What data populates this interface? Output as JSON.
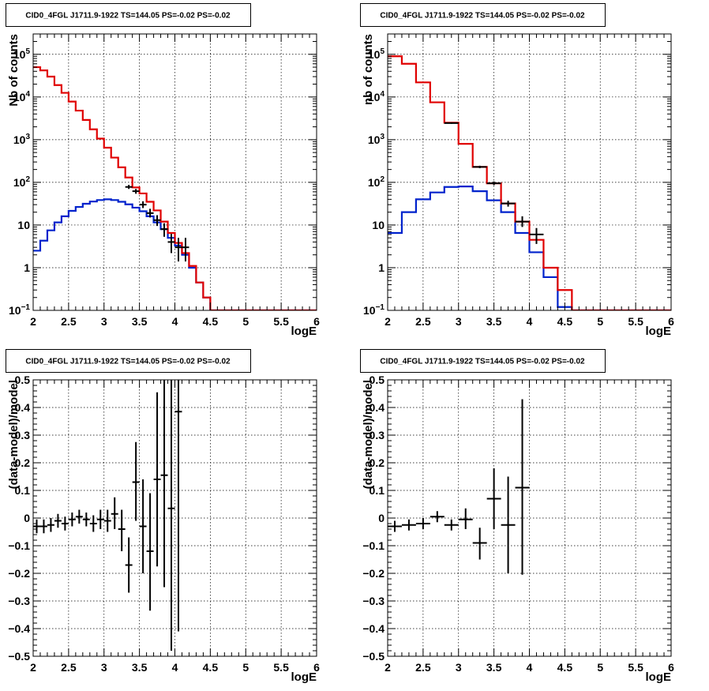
{
  "colors": {
    "data": "#000000",
    "total_model": "#e00000",
    "source_model": "#0022cc",
    "background": "#ffffff"
  },
  "panels": [
    {
      "id": "top-left",
      "title": "CID0_4FGL J1711.9-1922 TS=144.05 PS=-0.02 PS=-0.02",
      "chart_data": {
        "type": "histogram",
        "xlabel": "logE",
        "ylabel": "Nb of counts",
        "xlim": [
          2,
          6
        ],
        "ylim": [
          0.1,
          300000
        ],
        "yscale": "log",
        "grid": true,
        "x_ticks": [
          "2",
          "2.5",
          "3",
          "3.5",
          "4",
          "4.5",
          "5",
          "5.5",
          "6"
        ],
        "y_ticks": [
          {
            "value": 0.1,
            "base": "10",
            "exp": "−1"
          },
          {
            "value": 1,
            "label": "1"
          },
          {
            "value": 10,
            "label": "10"
          },
          {
            "value": 100,
            "base": "10",
            "exp": "2"
          },
          {
            "value": 1000,
            "base": "10",
            "exp": "3"
          },
          {
            "value": 10000,
            "base": "10",
            "exp": "4"
          },
          {
            "value": 100000,
            "base": "10",
            "exp": "5"
          }
        ],
        "bin_edges": [
          2.0,
          2.1,
          2.2,
          2.3,
          2.4,
          2.5,
          2.6,
          2.7,
          2.8,
          2.9,
          3.0,
          3.1,
          3.2,
          3.3,
          3.4,
          3.5,
          3.6,
          3.7,
          3.8,
          3.9,
          4.0,
          4.1,
          4.2,
          4.3,
          4.4,
          4.5,
          4.6,
          4.7,
          4.8,
          4.9,
          5.0,
          5.1,
          5.2,
          5.3,
          5.4,
          5.5,
          5.6,
          5.7,
          5.8,
          5.9,
          6.0
        ],
        "series": [
          {
            "role": "total_model",
            "values": [
              50000,
              42000,
              30000,
              19000,
              12500,
              7800,
              4800,
              2900,
              1750,
              1060,
              650,
              380,
              225,
              130,
              76,
              55,
              35,
              22,
              12,
              6.5,
              3.8,
              2.2,
              1.1,
              0.45,
              0.2,
              0.1,
              0.1,
              0.1,
              0.1,
              0.1,
              0.1,
              0.1,
              0.1,
              0.1,
              0.1,
              0.1,
              0.1,
              0.1,
              0.1,
              0.1
            ]
          },
          {
            "role": "source_model",
            "values": [
              2.5,
              4.3,
              7.5,
              11.5,
              16,
              21.5,
              26.5,
              31.5,
              35.5,
              38.5,
              40,
              38.5,
              35,
              30.5,
              25.5,
              21,
              16,
              11.5,
              8,
              5,
              3.3,
              2.0,
              1.0,
              0.45,
              0.2,
              0.1,
              0.1,
              0.1,
              0.1,
              0.1,
              0.1,
              0.1,
              0.1,
              0.1,
              0.1,
              0.1,
              0.1,
              0.1,
              0.1,
              0.1
            ]
          },
          {
            "role": "data",
            "points": [
              {
                "x": 3.35,
                "y": 78,
                "xerr": 0.05,
                "ylo": 70,
                "yhi": 87
              },
              {
                "x": 3.45,
                "y": 62,
                "xerr": 0.05,
                "ylo": 54,
                "yhi": 70
              },
              {
                "x": 3.55,
                "y": 30,
                "xerr": 0.05,
                "ylo": 25,
                "yhi": 36
              },
              {
                "x": 3.65,
                "y": 19,
                "xerr": 0.05,
                "ylo": 15,
                "yhi": 24
              },
              {
                "x": 3.75,
                "y": 13,
                "xerr": 0.05,
                "ylo": 9.5,
                "yhi": 17
              },
              {
                "x": 3.85,
                "y": 8,
                "xerr": 0.05,
                "ylo": 5.3,
                "yhi": 11
              },
              {
                "x": 3.95,
                "y": 4,
                "xerr": 0.05,
                "ylo": 2.2,
                "yhi": 6.2
              },
              {
                "x": 4.05,
                "y": 3,
                "xerr": 0.05,
                "ylo": 1.4,
                "yhi": 5
              },
              {
                "x": 4.15,
                "y": 3,
                "xerr": 0.05,
                "ylo": 1.4,
                "yhi": 5
              }
            ]
          }
        ]
      }
    },
    {
      "id": "top-right",
      "title": "CID0_4FGL J1711.9-1922 TS=144.05 PS=-0.02 PS=-0.02",
      "chart_data": {
        "type": "histogram",
        "xlabel": "logE",
        "ylabel": "nb of counts",
        "xlim": [
          2,
          6
        ],
        "ylim": [
          0.1,
          300000
        ],
        "yscale": "log",
        "grid": true,
        "x_ticks": [
          "2",
          "2.5",
          "3",
          "3.5",
          "4",
          "4.5",
          "5",
          "5.5",
          "6"
        ],
        "y_ticks": [
          {
            "value": 0.1,
            "base": "10",
            "exp": "−1"
          },
          {
            "value": 1,
            "label": "1"
          },
          {
            "value": 10,
            "label": "10"
          },
          {
            "value": 100,
            "base": "10",
            "exp": "2"
          },
          {
            "value": 1000,
            "base": "10",
            "exp": "3"
          },
          {
            "value": 10000,
            "base": "10",
            "exp": "4"
          },
          {
            "value": 100000,
            "base": "10",
            "exp": "5"
          }
        ],
        "bin_edges": [
          2.0,
          2.2,
          2.4,
          2.6,
          2.8,
          3.0,
          3.2,
          3.4,
          3.6,
          3.8,
          4.0,
          4.2,
          4.4,
          4.6,
          4.8,
          5.0,
          5.2,
          5.4,
          5.6,
          5.8,
          6.0
        ],
        "series": [
          {
            "role": "total_model",
            "values": [
              90000,
              60000,
              22000,
              7500,
              2500,
              800,
              230,
              95,
              32,
              12,
              4.5,
              1.0,
              0.3,
              0.1,
              0.1,
              0.1,
              0.1,
              0.1,
              0.1,
              0.1
            ]
          },
          {
            "role": "source_model",
            "values": [
              6.5,
              20,
              40,
              58,
              78,
              80,
              62,
              38,
              20,
              6.5,
              2.3,
              0.6,
              0.12,
              0.1,
              0.1,
              0.1,
              0.1,
              0.1,
              0.1,
              0.1
            ]
          },
          {
            "role": "data",
            "points": [
              {
                "x": 2.9,
                "y": 2450,
                "xerr": 0.1,
                "ylo": 2350,
                "yhi": 2550
              },
              {
                "x": 3.3,
                "y": 230,
                "xerr": 0.1,
                "ylo": 215,
                "yhi": 245
              },
              {
                "x": 3.5,
                "y": 95,
                "xerr": 0.1,
                "ylo": 86,
                "yhi": 105
              },
              {
                "x": 3.7,
                "y": 32,
                "xerr": 0.1,
                "ylo": 27,
                "yhi": 37
              },
              {
                "x": 3.9,
                "y": 12,
                "xerr": 0.1,
                "ylo": 9,
                "yhi": 16
              },
              {
                "x": 4.1,
                "y": 6,
                "xerr": 0.1,
                "ylo": 3.6,
                "yhi": 8.5
              }
            ]
          }
        ]
      }
    },
    {
      "id": "bottom-left",
      "title": "CID0_4FGL J1711.9-1922 TS=144.05 PS=-0.02 PS=-0.02",
      "chart_data": {
        "type": "scatter",
        "xlabel": "logE",
        "ylabel": "(data-model)/model",
        "xlim": [
          2,
          6
        ],
        "ylim": [
          -0.5,
          0.5
        ],
        "grid": true,
        "x_ticks": [
          "2",
          "2.5",
          "3",
          "3.5",
          "4",
          "4.5",
          "5",
          "5.5",
          "6"
        ],
        "y_ticks": [
          {
            "value": 0.5,
            "label": "0.5"
          },
          {
            "value": 0.4,
            "label": "0.4"
          },
          {
            "value": 0.3,
            "label": "0.3"
          },
          {
            "value": 0.2,
            "label": "0.2"
          },
          {
            "value": 0.1,
            "label": "0.1"
          },
          {
            "value": 0,
            "label": "0"
          },
          {
            "value": -0.1,
            "label": "−0.1"
          },
          {
            "value": -0.2,
            "label": "−0.2"
          },
          {
            "value": -0.3,
            "label": "−0.3"
          },
          {
            "value": -0.4,
            "label": "−0.4"
          },
          {
            "value": -0.5,
            "label": "−0.5"
          }
        ],
        "series": [
          {
            "role": "data",
            "points": [
              {
                "x": 2.05,
                "y": -0.03,
                "xerr": 0.05,
                "ylo": -0.055,
                "yhi": -0.005
              },
              {
                "x": 2.15,
                "y": -0.03,
                "xerr": 0.05,
                "ylo": -0.055,
                "yhi": -0.005
              },
              {
                "x": 2.25,
                "y": -0.025,
                "xerr": 0.05,
                "ylo": -0.05,
                "yhi": 0.0
              },
              {
                "x": 2.35,
                "y": -0.01,
                "xerr": 0.05,
                "ylo": -0.035,
                "yhi": 0.015
              },
              {
                "x": 2.45,
                "y": -0.02,
                "xerr": 0.05,
                "ylo": -0.045,
                "yhi": 0.005
              },
              {
                "x": 2.55,
                "y": -0.005,
                "xerr": 0.05,
                "ylo": -0.03,
                "yhi": 0.02
              },
              {
                "x": 2.65,
                "y": 0.005,
                "xerr": 0.05,
                "ylo": -0.02,
                "yhi": 0.03
              },
              {
                "x": 2.75,
                "y": -0.005,
                "xerr": 0.05,
                "ylo": -0.03,
                "yhi": 0.02
              },
              {
                "x": 2.85,
                "y": -0.02,
                "xerr": 0.05,
                "ylo": -0.05,
                "yhi": 0.01
              },
              {
                "x": 2.95,
                "y": -0.005,
                "xerr": 0.05,
                "ylo": -0.04,
                "yhi": 0.03
              },
              {
                "x": 3.05,
                "y": -0.01,
                "xerr": 0.05,
                "ylo": -0.05,
                "yhi": 0.03
              },
              {
                "x": 3.15,
                "y": 0.015,
                "xerr": 0.05,
                "ylo": -0.04,
                "yhi": 0.075
              },
              {
                "x": 3.25,
                "y": -0.04,
                "xerr": 0.05,
                "ylo": -0.12,
                "yhi": 0.03
              },
              {
                "x": 3.35,
                "y": -0.17,
                "xerr": 0.05,
                "ylo": -0.27,
                "yhi": -0.07
              },
              {
                "x": 3.45,
                "y": 0.13,
                "xerr": 0.05,
                "ylo": -0.01,
                "yhi": 0.275
              },
              {
                "x": 3.55,
                "y": -0.03,
                "xerr": 0.05,
                "ylo": -0.2,
                "yhi": 0.14
              },
              {
                "x": 3.65,
                "y": -0.12,
                "xerr": 0.05,
                "ylo": -0.335,
                "yhi": 0.09
              },
              {
                "x": 3.75,
                "y": 0.14,
                "xerr": 0.05,
                "ylo": -0.175,
                "yhi": 0.455
              },
              {
                "x": 3.85,
                "y": 0.155,
                "xerr": 0.05,
                "ylo": -0.25,
                "yhi": 0.5
              },
              {
                "x": 3.95,
                "y": 0.035,
                "xerr": 0.05,
                "ylo": -0.48,
                "yhi": 0.5
              },
              {
                "x": 4.05,
                "y": 0.385,
                "xerr": 0.05,
                "ylo": -0.41,
                "yhi": 0.5
              }
            ]
          }
        ]
      }
    },
    {
      "id": "bottom-right",
      "title": "CID0_4FGL J1711.9-1922 TS=144.05 PS=-0.02 PS=-0.02",
      "chart_data": {
        "type": "scatter",
        "xlabel": "logE",
        "ylabel": "(data-model)/model",
        "xlim": [
          2,
          6
        ],
        "ylim": [
          -0.5,
          0.5
        ],
        "grid": true,
        "x_ticks": [
          "2",
          "2.5",
          "3",
          "3.5",
          "4",
          "4.5",
          "5",
          "5.5",
          "6"
        ],
        "y_ticks": [
          {
            "value": 0.5,
            "label": "0.5"
          },
          {
            "value": 0.4,
            "label": "0.4"
          },
          {
            "value": 0.3,
            "label": "0.3"
          },
          {
            "value": 0.2,
            "label": "0.2"
          },
          {
            "value": 0.1,
            "label": "0.1"
          },
          {
            "value": 0,
            "label": "0"
          },
          {
            "value": -0.1,
            "label": "−0.1"
          },
          {
            "value": -0.2,
            "label": "−0.2"
          },
          {
            "value": -0.3,
            "label": "−0.3"
          },
          {
            "value": -0.4,
            "label": "−0.4"
          },
          {
            "value": -0.5,
            "label": "−0.5"
          }
        ],
        "series": [
          {
            "role": "data",
            "points": [
              {
                "x": 2.1,
                "y": -0.03,
                "xerr": 0.1,
                "ylo": -0.05,
                "yhi": -0.01
              },
              {
                "x": 2.3,
                "y": -0.025,
                "xerr": 0.1,
                "ylo": -0.045,
                "yhi": -0.005
              },
              {
                "x": 2.5,
                "y": -0.02,
                "xerr": 0.1,
                "ylo": -0.04,
                "yhi": 0.0
              },
              {
                "x": 2.7,
                "y": 0.005,
                "xerr": 0.1,
                "ylo": -0.015,
                "yhi": 0.025
              },
              {
                "x": 2.9,
                "y": -0.025,
                "xerr": 0.1,
                "ylo": -0.045,
                "yhi": -0.005
              },
              {
                "x": 3.1,
                "y": -0.005,
                "xerr": 0.1,
                "ylo": -0.04,
                "yhi": 0.035
              },
              {
                "x": 3.3,
                "y": -0.09,
                "xerr": 0.1,
                "ylo": -0.15,
                "yhi": -0.035
              },
              {
                "x": 3.5,
                "y": 0.07,
                "xerr": 0.1,
                "ylo": -0.04,
                "yhi": 0.18
              },
              {
                "x": 3.7,
                "y": -0.025,
                "xerr": 0.1,
                "ylo": -0.2,
                "yhi": 0.15
              },
              {
                "x": 3.9,
                "y": 0.11,
                "xerr": 0.1,
                "ylo": -0.205,
                "yhi": 0.43
              }
            ]
          }
        ]
      }
    }
  ]
}
